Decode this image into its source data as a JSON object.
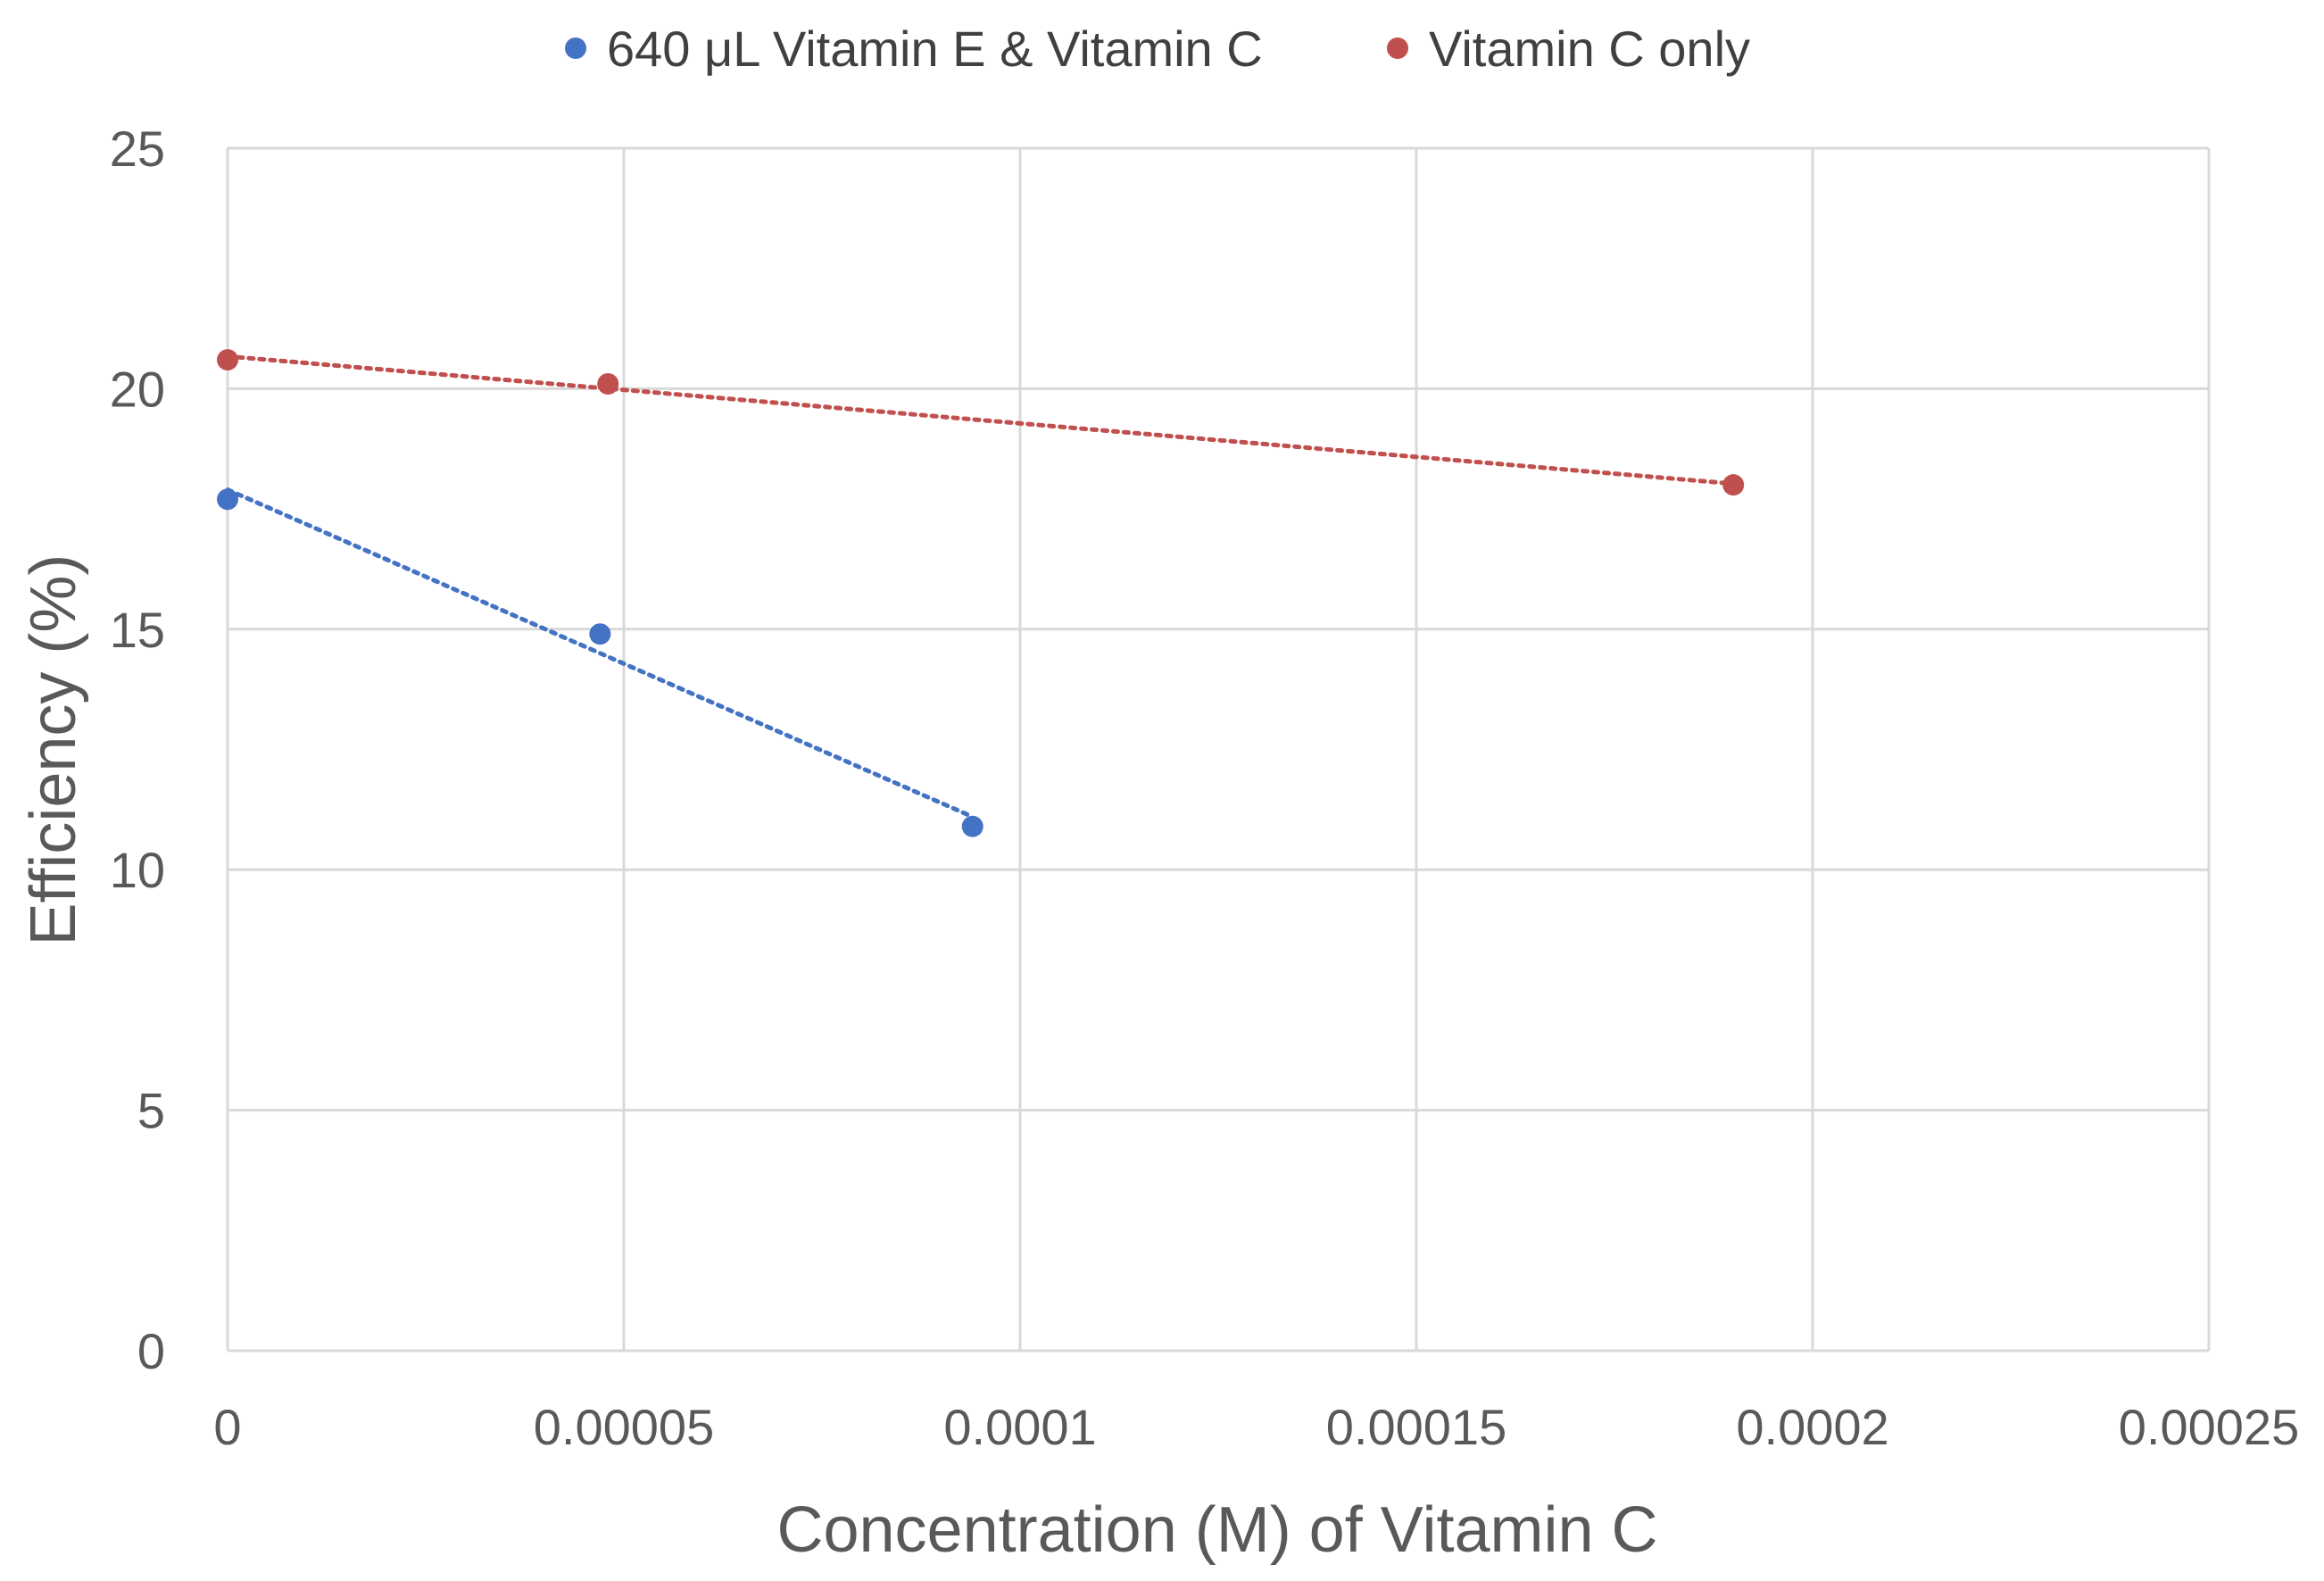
{
  "chart_data": {
    "type": "scatter",
    "title": "",
    "xlabel": "Concentration (M) of Vitamin C",
    "ylabel": "Efficiency (%)",
    "xlim": [
      0,
      0.00025
    ],
    "ylim": [
      0,
      25
    ],
    "xticks": [
      "0",
      "0.00005",
      "0.0001",
      "0.00015",
      "0.0002",
      "0.00025"
    ],
    "yticks": [
      "0",
      "5",
      "10",
      "15",
      "20",
      "25"
    ],
    "grid": true,
    "legend_position": "top",
    "trendline": "linear, dotted",
    "series": [
      {
        "name": "640 μL Vitamin E & Vitamin C",
        "color": "#4472c4",
        "x": [
          0,
          4.7e-05,
          9.4e-05
        ],
        "y": [
          17.7,
          14.9,
          10.9
        ]
      },
      {
        "name": "Vitamin C only",
        "color": "#c0504d",
        "x": [
          0,
          4.8e-05,
          0.00019
        ],
        "y": [
          20.6,
          20.1,
          18.0
        ]
      }
    ]
  }
}
